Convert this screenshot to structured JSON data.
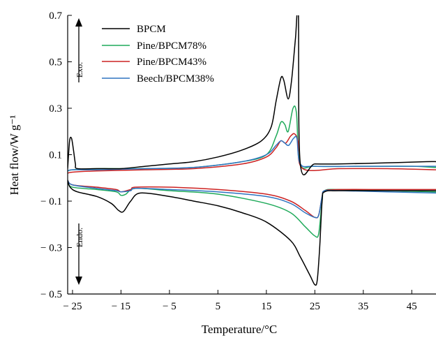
{
  "chart_data": {
    "type": "line",
    "xlabel": "Temperature/°C",
    "ylabel": "Heat flow/W g⁻¹",
    "xlim": [
      -26,
      50
    ],
    "ylim": [
      -0.5,
      0.7
    ],
    "xticks": [
      -25,
      -15,
      -5,
      5,
      15,
      25,
      35,
      45
    ],
    "xtick_labels": [
      "− 25",
      "− 15",
      "− 5",
      "5",
      "15",
      "25",
      "35",
      "45"
    ],
    "yticks": [
      -0.5,
      -0.3,
      -0.1,
      0.1,
      0.3,
      0.5,
      0.7
    ],
    "ytick_labels": [
      "− 0.5",
      "− 0.3",
      "− 0.1",
      "0.1",
      "0.3",
      "0.5",
      "0.7"
    ],
    "grid": false,
    "legend_position": "top-left",
    "annotations": [
      {
        "text": "Exo.",
        "direction": "up"
      },
      {
        "text": "Endo.",
        "direction": "down"
      }
    ],
    "series": [
      {
        "name": "BPCM",
        "color": "#000000",
        "heating": [
          [
            -26,
            0.04
          ],
          [
            -25.6,
            0.16
          ],
          [
            -25.2,
            0.17
          ],
          [
            -24.8,
            0.12
          ],
          [
            -24.4,
            0.06
          ],
          [
            -24,
            0.04
          ],
          [
            -20,
            0.04
          ],
          [
            -15,
            0.04
          ],
          [
            -10,
            0.05
          ],
          [
            -5,
            0.06
          ],
          [
            0,
            0.07
          ],
          [
            5,
            0.09
          ],
          [
            10,
            0.12
          ],
          [
            14,
            0.16
          ],
          [
            16,
            0.22
          ],
          [
            17,
            0.33
          ],
          [
            18,
            0.43
          ],
          [
            18.6,
            0.42
          ],
          [
            19.5,
            0.34
          ],
          [
            20.2,
            0.42
          ],
          [
            21,
            0.6
          ],
          [
            21.6,
            0.72
          ],
          [
            22,
            0.06
          ],
          [
            25,
            0.06
          ],
          [
            30,
            0.06
          ],
          [
            40,
            0.065
          ],
          [
            48,
            0.07
          ],
          [
            50,
            0.07
          ]
        ],
        "cooling": [
          [
            -26,
            -0.01
          ],
          [
            -25.5,
            -0.04
          ],
          [
            -24,
            -0.06
          ],
          [
            -20,
            -0.08
          ],
          [
            -17,
            -0.11
          ],
          [
            -15.5,
            -0.14
          ],
          [
            -14.5,
            -0.145
          ],
          [
            -13,
            -0.1
          ],
          [
            -11,
            -0.065
          ],
          [
            -5,
            -0.08
          ],
          [
            0,
            -0.1
          ],
          [
            5,
            -0.12
          ],
          [
            10,
            -0.15
          ],
          [
            15,
            -0.19
          ],
          [
            20,
            -0.27
          ],
          [
            22,
            -0.34
          ],
          [
            24,
            -0.42
          ],
          [
            25,
            -0.46
          ],
          [
            25.5,
            -0.44
          ],
          [
            26,
            -0.3
          ],
          [
            26.5,
            -0.1
          ],
          [
            27,
            -0.06
          ],
          [
            30,
            -0.055
          ],
          [
            40,
            -0.055
          ],
          [
            50,
            -0.055
          ]
        ]
      },
      {
        "name": "Pine/BPCM78%",
        "color": "#1faa5a",
        "heating": [
          [
            -26,
            0.03
          ],
          [
            -25,
            0.035
          ],
          [
            -20,
            0.04
          ],
          [
            -10,
            0.04
          ],
          [
            0,
            0.045
          ],
          [
            10,
            0.07
          ],
          [
            15,
            0.1
          ],
          [
            17,
            0.18
          ],
          [
            18,
            0.24
          ],
          [
            18.8,
            0.23
          ],
          [
            19.5,
            0.2
          ],
          [
            20.5,
            0.3
          ],
          [
            21.2,
            0.28
          ],
          [
            22,
            0.06
          ],
          [
            25,
            0.05
          ],
          [
            35,
            0.05
          ],
          [
            45,
            0.05
          ],
          [
            50,
            0.045
          ]
        ],
        "cooling": [
          [
            -26,
            -0.02
          ],
          [
            -25,
            -0.04
          ],
          [
            -20,
            -0.05
          ],
          [
            -16,
            -0.06
          ],
          [
            -15,
            -0.075
          ],
          [
            -14,
            -0.07
          ],
          [
            -12,
            -0.045
          ],
          [
            -5,
            -0.055
          ],
          [
            5,
            -0.07
          ],
          [
            15,
            -0.11
          ],
          [
            20,
            -0.15
          ],
          [
            23,
            -0.21
          ],
          [
            25,
            -0.25
          ],
          [
            25.8,
            -0.24
          ],
          [
            26.5,
            -0.1
          ],
          [
            27,
            -0.055
          ],
          [
            30,
            -0.05
          ],
          [
            40,
            -0.055
          ],
          [
            50,
            -0.06
          ]
        ]
      },
      {
        "name": "Pine/BPCM43%",
        "color": "#cc2222",
        "heating": [
          [
            -26,
            0.02
          ],
          [
            -25,
            0.025
          ],
          [
            -20,
            0.03
          ],
          [
            -10,
            0.035
          ],
          [
            0,
            0.04
          ],
          [
            10,
            0.06
          ],
          [
            15,
            0.09
          ],
          [
            17,
            0.13
          ],
          [
            18,
            0.16
          ],
          [
            19,
            0.15
          ],
          [
            20,
            0.18
          ],
          [
            20.8,
            0.19
          ],
          [
            21.5,
            0.16
          ],
          [
            22.5,
            0.04
          ],
          [
            30,
            0.04
          ],
          [
            40,
            0.04
          ],
          [
            50,
            0.035
          ]
        ],
        "cooling": [
          [
            -26,
            -0.01
          ],
          [
            -25,
            -0.03
          ],
          [
            -20,
            -0.04
          ],
          [
            -16,
            -0.05
          ],
          [
            -15,
            -0.06
          ],
          [
            -13,
            -0.05
          ],
          [
            -12,
            -0.04
          ],
          [
            -5,
            -0.04
          ],
          [
            5,
            -0.05
          ],
          [
            15,
            -0.07
          ],
          [
            20,
            -0.1
          ],
          [
            23,
            -0.14
          ],
          [
            25,
            -0.17
          ],
          [
            25.8,
            -0.16
          ],
          [
            26.5,
            -0.08
          ],
          [
            27,
            -0.055
          ],
          [
            30,
            -0.05
          ],
          [
            40,
            -0.05
          ],
          [
            50,
            -0.05
          ]
        ]
      },
      {
        "name": "Beech/BPCM38%",
        "color": "#2f74c0",
        "heating": [
          [
            -26,
            0.03
          ],
          [
            -25,
            0.035
          ],
          [
            -20,
            0.035
          ],
          [
            -10,
            0.04
          ],
          [
            0,
            0.045
          ],
          [
            10,
            0.07
          ],
          [
            15,
            0.1
          ],
          [
            17,
            0.14
          ],
          [
            18,
            0.16
          ],
          [
            18.8,
            0.15
          ],
          [
            19.6,
            0.14
          ],
          [
            20.6,
            0.17
          ],
          [
            21.3,
            0.17
          ],
          [
            22,
            0.06
          ],
          [
            25,
            0.05
          ],
          [
            35,
            0.05
          ],
          [
            45,
            0.05
          ],
          [
            50,
            0.05
          ]
        ],
        "cooling": [
          [
            -26,
            -0.01
          ],
          [
            -25,
            -0.03
          ],
          [
            -20,
            -0.045
          ],
          [
            -16,
            -0.055
          ],
          [
            -15,
            -0.06
          ],
          [
            -13,
            -0.055
          ],
          [
            -12,
            -0.045
          ],
          [
            -5,
            -0.05
          ],
          [
            5,
            -0.06
          ],
          [
            15,
            -0.08
          ],
          [
            20,
            -0.11
          ],
          [
            23,
            -0.15
          ],
          [
            25,
            -0.17
          ],
          [
            25.8,
            -0.16
          ],
          [
            26.5,
            -0.08
          ],
          [
            27,
            -0.055
          ],
          [
            30,
            -0.055
          ],
          [
            40,
            -0.06
          ],
          [
            50,
            -0.065
          ]
        ]
      }
    ]
  }
}
